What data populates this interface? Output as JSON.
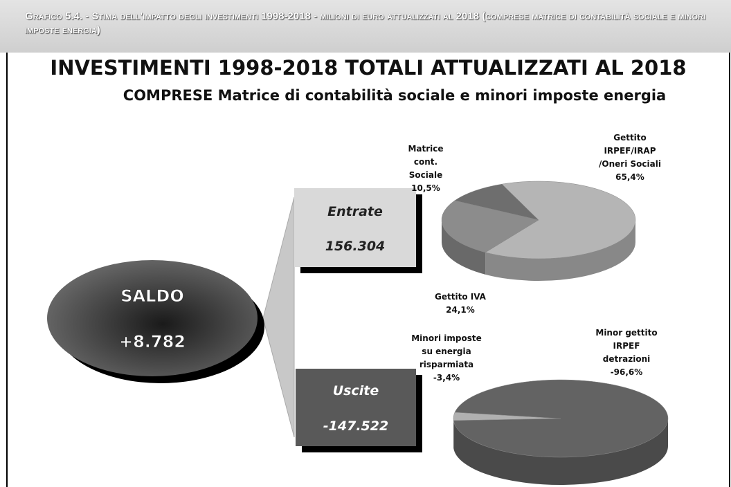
{
  "header": "Grafico 5.4. - Stima dell’impatto degli investimenti 1998-2018 - milioni di euro attualizzati al 2018 (comprese matrice di contabilità sociale e minori imposte energia)",
  "title": "INVESTIMENTI 1998-2018 TOTALI ATTUALIZZATI AL 2018",
  "subtitle": "COMPRESE Matrice di contabilità sociale e minori imposte energia",
  "saldo": {
    "label": "SALDO",
    "value": "+8.782"
  },
  "entrate": {
    "label": "Entrate",
    "value": "156.304"
  },
  "uscite": {
    "label": "Uscite",
    "value": "-147.522"
  },
  "chart_data": [
    {
      "type": "pie",
      "categories": [
        "Matrice cont. Sociale",
        "Gettito IRPEF/IRAP /Oneri Sociali",
        "Gettito IVA"
      ],
      "values": [
        10.5,
        65.4,
        24.1
      ],
      "value_labels": [
        "10,5%",
        "65,4%",
        "24,1%"
      ],
      "colors": [
        "#6e6e6e",
        "#b5b5b5",
        "#8c8c8c"
      ]
    },
    {
      "type": "pie",
      "categories": [
        "Minori imposte su energia risparmiata",
        "Minor gettito IRPEF detrazioni"
      ],
      "values": [
        -3.4,
        -96.6
      ],
      "value_labels": [
        "-3,4%",
        "-96,6%"
      ],
      "colors": [
        "#b0b0b0",
        "#636363"
      ]
    }
  ]
}
